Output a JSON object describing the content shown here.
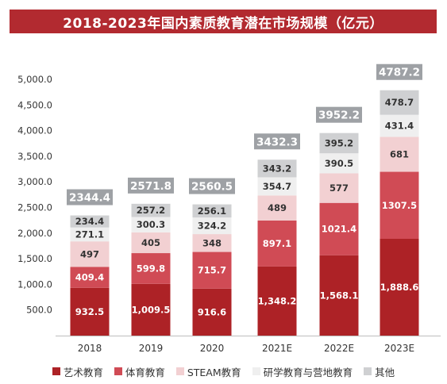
{
  "chart_data": {
    "type": "bar",
    "stacked": true,
    "title": "2018-2023年国内素质教育潜在市场规模（亿元）",
    "categories": [
      "2018",
      "2019",
      "2020",
      "2021E",
      "2022E",
      "2023E"
    ],
    "y_ticks": [
      "500.0",
      "1,000.0",
      "1,500.0",
      "2,000.0",
      "2,500.0",
      "3,000.0",
      "3,500.0",
      "4,000.0",
      "4,500.0",
      "5,000.0"
    ],
    "ylim": [
      0,
      5000
    ],
    "totals": [
      2344.4,
      2571.8,
      2560.5,
      3432.3,
      3952.2,
      4787.2
    ],
    "total_labels": [
      "2344.4",
      "2571.8",
      "2560.5",
      "3432.3",
      "3952.2",
      "4787.2"
    ],
    "legend_position": "bottom",
    "series": [
      {
        "name": "艺术教育",
        "color": "#ad2226",
        "values": [
          932.5,
          1009.5,
          916.6,
          1348.2,
          1568.1,
          1888.6
        ],
        "labels": [
          "932.5",
          "1,009.5",
          "916.6",
          "1,348.2",
          "1,568.1",
          "1,888.6"
        ]
      },
      {
        "name": "体育教育",
        "color": "#d04b55",
        "values": [
          409.4,
          599.8,
          715.7,
          897.1,
          1021.4,
          1307.5
        ],
        "labels": [
          "409.4",
          "599.8",
          "715.7",
          "897.1",
          "1021.4",
          "1307.5"
        ]
      },
      {
        "name": "STEAM教育",
        "color": "#f2d0d2",
        "values": [
          497,
          405,
          348,
          489,
          577,
          681
        ],
        "labels": [
          "497",
          "405",
          "348",
          "489",
          "577",
          "681"
        ]
      },
      {
        "name": "研学教育与营地教育",
        "color": "#efefef",
        "values": [
          271.1,
          300.3,
          324.2,
          354.7,
          390.5,
          431.4
        ],
        "labels": [
          "271.1",
          "300.3",
          "324.2",
          "354.7",
          "390.5",
          "431.4"
        ]
      },
      {
        "name": "其他",
        "color": "#cfd0d2",
        "values": [
          234.4,
          257.2,
          256.1,
          343.2,
          395.2,
          478.7
        ],
        "labels": [
          "234.4",
          "257.2",
          "256.1",
          "343.2",
          "395.2",
          "478.7"
        ]
      }
    ],
    "total_badge_color": "#9ea1a5"
  }
}
